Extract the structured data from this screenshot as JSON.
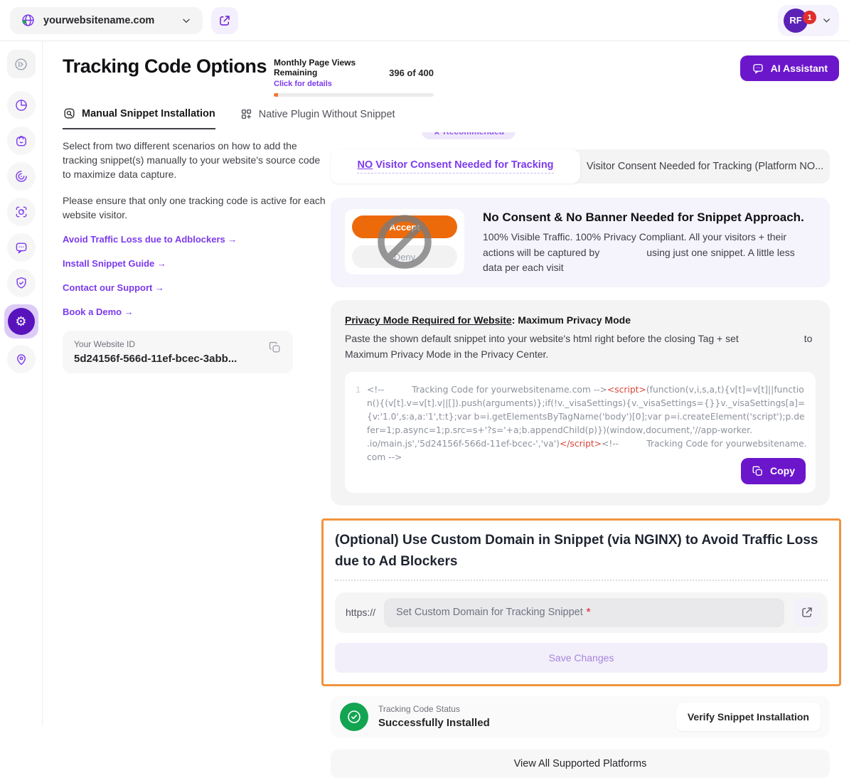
{
  "colors": {
    "brand_purple": "#6B16CB",
    "link_purple": "#7C3AED",
    "active_sidebar_purple": "#5813BC",
    "accent_orange_border": "#F0943D",
    "accept_orange": "#ED6A0B",
    "progress_orange": "#F4772E",
    "status_green": "#13A452",
    "code_red": "#D9453A",
    "notification_red": "#E02D2D"
  },
  "topbar": {
    "site_name": "yourwebsitename.com",
    "profile_initials": "RF",
    "notification_count": "1"
  },
  "sidebar": {
    "icons": [
      "collapse-nav-icon",
      "pie-chart-icon",
      "shop-bag-icon",
      "radar-icon",
      "session-focus-icon",
      "chat-bubble-icon",
      "shield-check-icon",
      "settings-gear-icon",
      "location-pin-icon"
    ]
  },
  "header": {
    "title": "Tracking Code Options",
    "quota_label": "Monthly Page Views Remaining",
    "quota_link": "Click for details",
    "quota_count": "396 of 400",
    "ai_assistant": "AI Assistant"
  },
  "tabs": {
    "manual": "Manual Snippet Installation",
    "native": "Native Plugin Without Snippet"
  },
  "left_panel": {
    "intro": "Select from two different scenarios on how to add the tracking snippet(s) manually to your website's source code to maximize data capture.",
    "note": "Please ensure that only one tracking code is active for each website visitor.",
    "links": [
      "Avoid Traffic Loss due to Adblockers →",
      "Install Snippet Guide →",
      "Contact our Support →",
      "Book a Demo →"
    ],
    "website_id_label": "Your Website ID",
    "website_id_value": "5d24156f-566d-11ef-bcec-3abb..."
  },
  "content": {
    "recommended_badge": "★ Recommended",
    "toggle": {
      "left_no": "NO",
      "left_rest": " Visitor Consent Needed for Tracking",
      "right": "Visitor Consent Needed for Tracking  (Platform NO..."
    },
    "consent": {
      "accept": "Accept",
      "deny": "Deny",
      "heading": "No Consent & No Banner Needed for Snippet Approach.",
      "body_start": "100% Visible Traffic. 100% Privacy Compliant. All your visitors + their actions will be captured by",
      "body_end": "using just one snippet. A little less data per each visit"
    },
    "privacy": {
      "heading_underlined": "Privacy Mode Required for Website",
      "heading_rest": ": Maximum Privacy Mode",
      "body_start": "Paste the shown default snippet into your website's html right before the closing Tag + set",
      "body_end": "to Maximum Privacy Mode in the Privacy Center.",
      "line_number": "1",
      "code_parts": [
        {
          "text": "<!--          Tracking Code for yourwebsitename.com -->",
          "color": "gray"
        },
        {
          "text": "<script>",
          "color": "red"
        },
        {
          "text": "(function(v,i,s,a,t){v[t]=v[t]||function(){(v[t].v=v[t].v||[]).push(arguments)};if(!v._visaSettings){v._visaSettings={}}v._visaSettings[a]={v:'1.0',s:a,a:'1',t:t};var b=i.getElementsByTagName('body')[0];var p=i.createElement('script');p.defer=1;p.async=1;p.src=s+'?s='+a;b.appendChild(p)})(window,document,'//app-worker.                      .io/main.js','5d24156f-566d-11ef-bcec-','va')",
          "color": "gray"
        },
        {
          "text": "</script>",
          "color": "red"
        },
        {
          "text": "<!--          Tracking Code for yourwebsitename.com -->",
          "color": "gray"
        }
      ],
      "copy_button": "Copy"
    },
    "custom_domain": {
      "heading": "(Optional) Use Custom Domain in Snippet (via NGINX) to Avoid Traffic Loss due to Ad Blockers",
      "protocol": "https://",
      "placeholder": "Set Custom Domain for Tracking Snippet",
      "required": "*",
      "save": "Save Changes"
    },
    "status": {
      "label": "Tracking Code Status",
      "value": "Successfully Installed",
      "verify": "Verify Snippet Installation"
    },
    "platforms": "View All Supported Platforms"
  }
}
